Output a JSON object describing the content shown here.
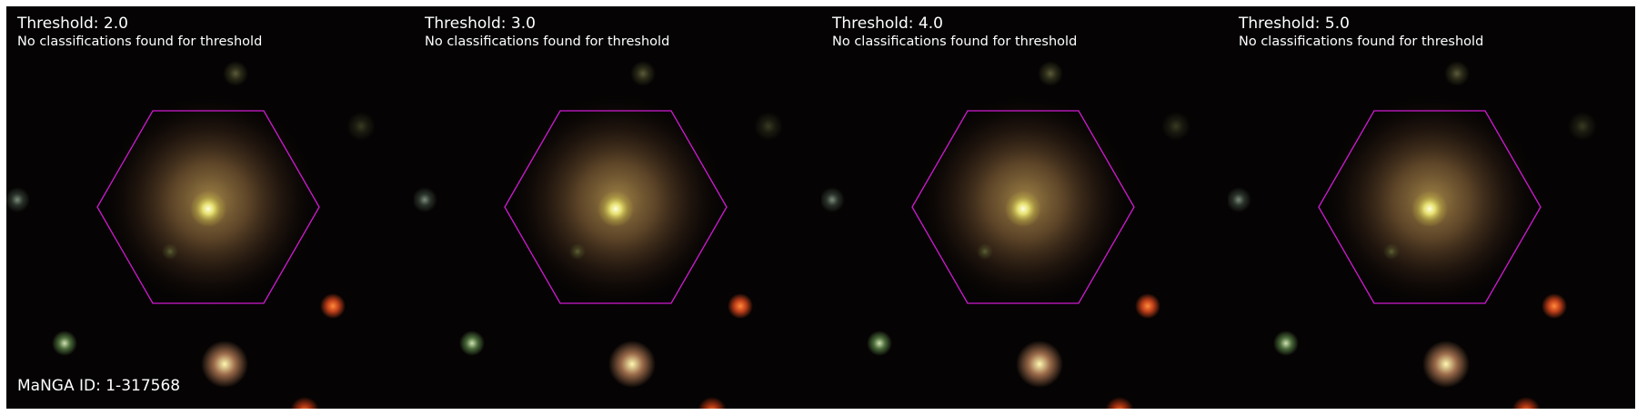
{
  "figure": {
    "panels": [
      {
        "title": "Threshold: 2.0",
        "subtitle": "No classifications found for threshold"
      },
      {
        "title": "Threshold: 3.0",
        "subtitle": "No classifications found for threshold"
      },
      {
        "title": "Threshold: 4.0",
        "subtitle": "No classifications found for threshold"
      },
      {
        "title": "Threshold: 5.0",
        "subtitle": "No classifications found for threshold"
      }
    ],
    "manga_id_label": "MaNGA ID: 1-317568",
    "colors": {
      "hexagon": "#d11ad1",
      "background": "#050303",
      "label_text": "#ffffff"
    }
  }
}
